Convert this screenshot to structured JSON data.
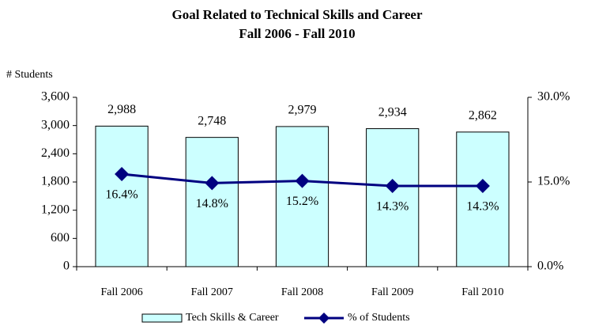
{
  "chart_data": {
    "type": "bar",
    "title": "Goal Related to Technical Skills and Career",
    "subtitle": "Fall 2006 - Fall 2010",
    "ylabel": "# Students",
    "categories": [
      "Fall 2006",
      "Fall 2007",
      "Fall 2008",
      "Fall 2009",
      "Fall 2010"
    ],
    "series": [
      {
        "name": "Tech Skills & Career",
        "type": "bar",
        "color": "#ccffff",
        "values": [
          2988,
          2748,
          2979,
          2934,
          2862
        ],
        "value_labels": [
          "2,988",
          "2,748",
          "2,979",
          "2,934",
          "2,862"
        ]
      },
      {
        "name": "% of Students",
        "type": "line",
        "axis": "y2",
        "color": "#000080",
        "values": [
          16.4,
          14.8,
          15.2,
          14.3,
          14.3
        ],
        "value_labels": [
          "16.4%",
          "14.8%",
          "15.2%",
          "14.3%",
          "14.3%"
        ]
      }
    ],
    "ylim": [
      0,
      3600
    ],
    "yticks": [
      0,
      600,
      {
        "value": 1200,
        "label": "1,200"
      },
      {
        "value": 1800,
        "label": "1,800"
      },
      {
        "value": 2400,
        "label": "2,400"
      },
      {
        "value": 3000,
        "label": "3,000"
      },
      {
        "value": 3600,
        "label": "3,600"
      }
    ],
    "y2lim": [
      0,
      30
    ],
    "y2ticks": [
      {
        "value": 0,
        "label": "0.0%"
      },
      {
        "value": 15,
        "label": "15.0%"
      },
      {
        "value": 30,
        "label": "30.0%"
      }
    ],
    "legend": "bottom"
  }
}
